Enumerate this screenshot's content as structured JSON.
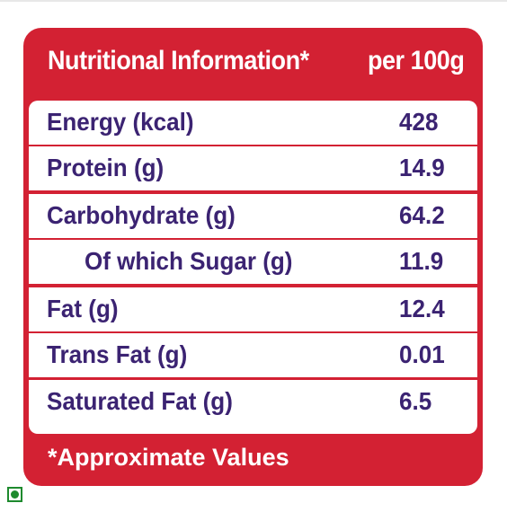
{
  "header": {
    "title": "Nutritional Information*",
    "per": "per 100g"
  },
  "rows": [
    {
      "name": "Energy (kcal)",
      "value": "428"
    },
    {
      "name": "Protein (g)",
      "value": "14.9"
    },
    {
      "name": "Carbohydrate (g)",
      "value": "64.2"
    },
    {
      "name": "Of which Sugar (g)",
      "value": "11.9"
    },
    {
      "name": "Fat (g)",
      "value": "12.4"
    },
    {
      "name": "Trans Fat (g)",
      "value": "0.01"
    },
    {
      "name": "Saturated Fat (g)",
      "value": "6.5"
    }
  ],
  "footer": "*Approximate Values",
  "colors": {
    "panel_red": "#d32133",
    "text_purple": "#3b2372",
    "veg_green": "#1e8a2e"
  },
  "icons": {
    "veg_mark": "veg-symbol-icon"
  }
}
